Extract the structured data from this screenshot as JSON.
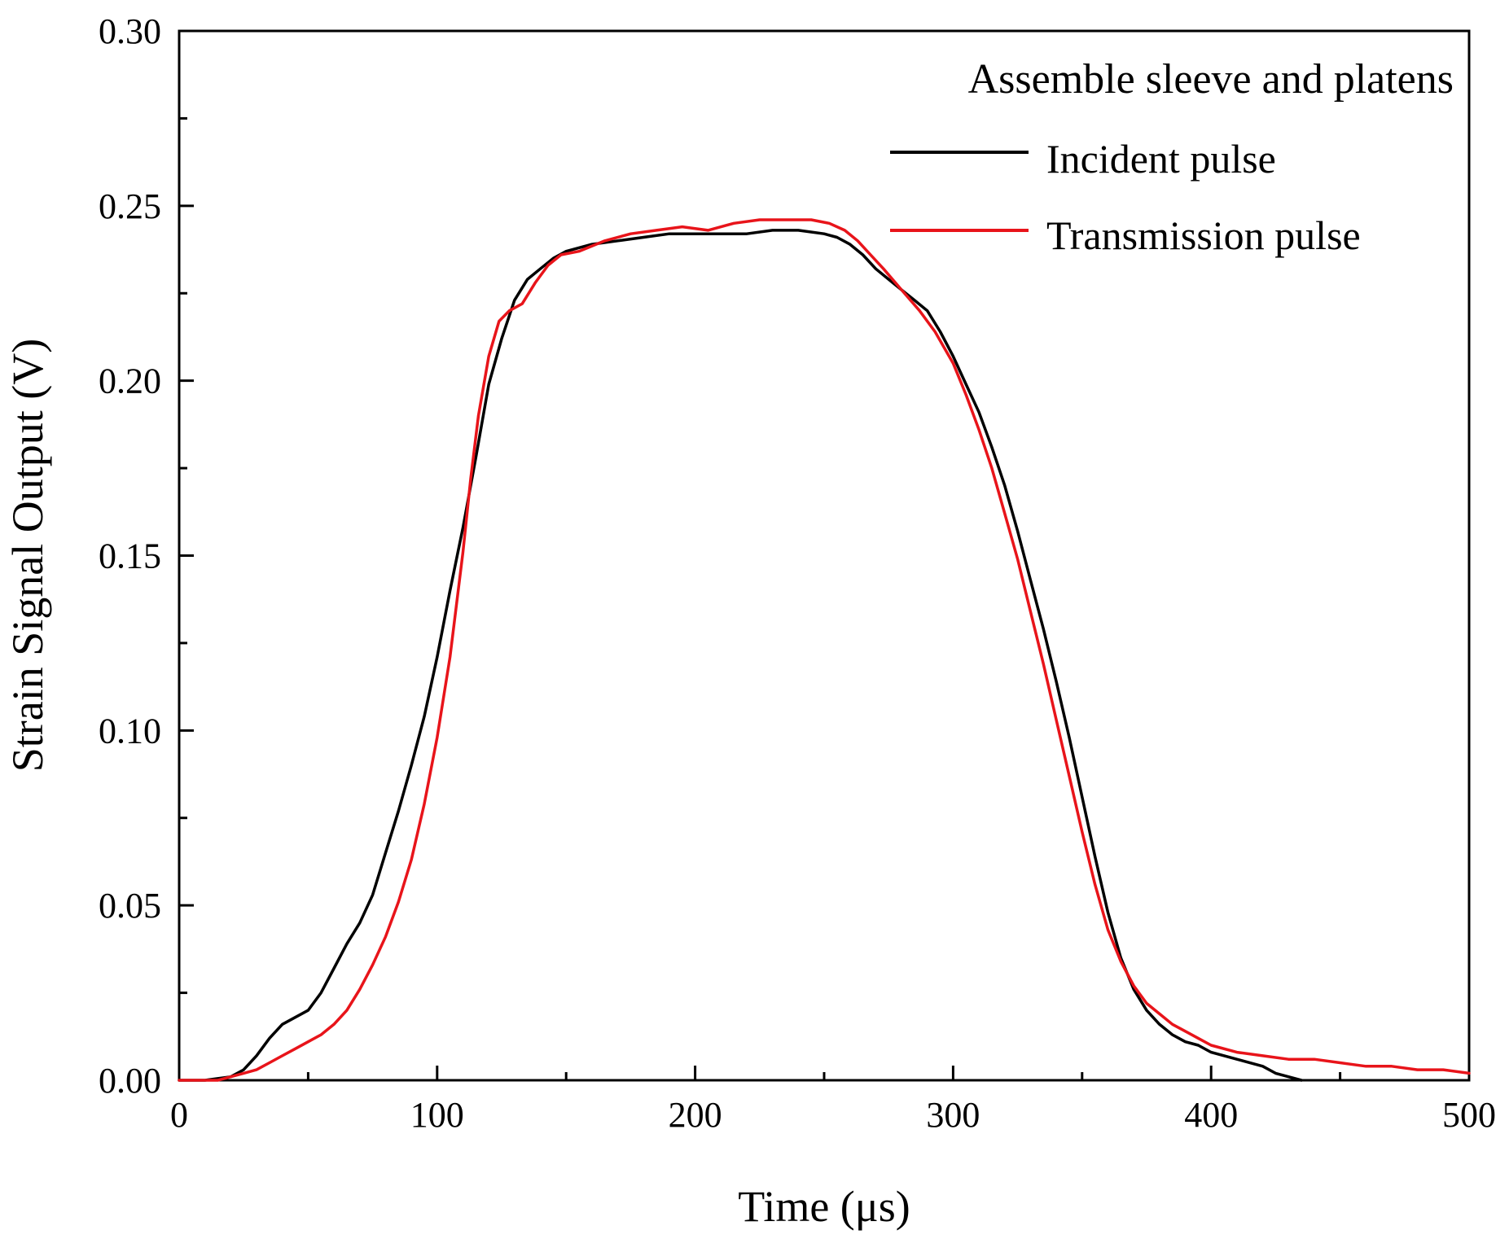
{
  "chart_data": {
    "type": "line",
    "title": "",
    "annotation": "Assemble sleeve and platens",
    "xlabel": "Time (μs)",
    "ylabel": "Strain Signal Output (V)",
    "xlim": [
      0,
      500
    ],
    "ylim": [
      0,
      0.3
    ],
    "x_ticks": [
      0,
      100,
      200,
      300,
      400,
      500
    ],
    "x_tick_labels": [
      "0",
      "100",
      "200",
      "300",
      "400",
      "500"
    ],
    "y_ticks": [
      0.0,
      0.05,
      0.1,
      0.15,
      0.2,
      0.25,
      0.3
    ],
    "y_tick_labels": [
      "0.00",
      "0.05",
      "0.10",
      "0.15",
      "0.20",
      "0.25",
      "0.30"
    ],
    "grid": false,
    "legend_position": "top-right",
    "series": [
      {
        "name": "Incident pulse",
        "color": "#000000",
        "points": [
          [
            0,
            0.0
          ],
          [
            10,
            0.0
          ],
          [
            20,
            0.001
          ],
          [
            25,
            0.003
          ],
          [
            30,
            0.007
          ],
          [
            35,
            0.012
          ],
          [
            40,
            0.016
          ],
          [
            50,
            0.02
          ],
          [
            55,
            0.025
          ],
          [
            60,
            0.032
          ],
          [
            65,
            0.039
          ],
          [
            70,
            0.045
          ],
          [
            75,
            0.053
          ],
          [
            80,
            0.065
          ],
          [
            85,
            0.077
          ],
          [
            90,
            0.09
          ],
          [
            95,
            0.104
          ],
          [
            100,
            0.121
          ],
          [
            105,
            0.14
          ],
          [
            110,
            0.158
          ],
          [
            115,
            0.178
          ],
          [
            120,
            0.199
          ],
          [
            125,
            0.212
          ],
          [
            130,
            0.223
          ],
          [
            135,
            0.229
          ],
          [
            140,
            0.232
          ],
          [
            145,
            0.235
          ],
          [
            150,
            0.237
          ],
          [
            160,
            0.239
          ],
          [
            170,
            0.24
          ],
          [
            180,
            0.241
          ],
          [
            190,
            0.242
          ],
          [
            200,
            0.242
          ],
          [
            210,
            0.242
          ],
          [
            220,
            0.242
          ],
          [
            230,
            0.243
          ],
          [
            240,
            0.243
          ],
          [
            250,
            0.242
          ],
          [
            255,
            0.241
          ],
          [
            260,
            0.239
          ],
          [
            265,
            0.236
          ],
          [
            270,
            0.232
          ],
          [
            275,
            0.229
          ],
          [
            280,
            0.226
          ],
          [
            285,
            0.223
          ],
          [
            290,
            0.22
          ],
          [
            295,
            0.214
          ],
          [
            300,
            0.207
          ],
          [
            305,
            0.199
          ],
          [
            310,
            0.191
          ],
          [
            315,
            0.181
          ],
          [
            320,
            0.17
          ],
          [
            325,
            0.157
          ],
          [
            330,
            0.143
          ],
          [
            335,
            0.129
          ],
          [
            340,
            0.114
          ],
          [
            345,
            0.098
          ],
          [
            350,
            0.081
          ],
          [
            355,
            0.064
          ],
          [
            360,
            0.048
          ],
          [
            365,
            0.035
          ],
          [
            370,
            0.026
          ],
          [
            375,
            0.02
          ],
          [
            380,
            0.016
          ],
          [
            385,
            0.013
          ],
          [
            390,
            0.011
          ],
          [
            395,
            0.01
          ],
          [
            400,
            0.008
          ],
          [
            410,
            0.006
          ],
          [
            420,
            0.004
          ],
          [
            425,
            0.002
          ],
          [
            430,
            0.001
          ],
          [
            435,
            0.0
          ]
        ]
      },
      {
        "name": "Transmission pulse",
        "color": "#e8141a",
        "points": [
          [
            0,
            0.0
          ],
          [
            15,
            0.0
          ],
          [
            20,
            0.001
          ],
          [
            25,
            0.002
          ],
          [
            30,
            0.003
          ],
          [
            35,
            0.005
          ],
          [
            40,
            0.007
          ],
          [
            45,
            0.009
          ],
          [
            50,
            0.011
          ],
          [
            55,
            0.013
          ],
          [
            60,
            0.016
          ],
          [
            65,
            0.02
          ],
          [
            70,
            0.026
          ],
          [
            75,
            0.033
          ],
          [
            80,
            0.041
          ],
          [
            85,
            0.051
          ],
          [
            90,
            0.063
          ],
          [
            95,
            0.079
          ],
          [
            100,
            0.098
          ],
          [
            105,
            0.121
          ],
          [
            110,
            0.151
          ],
          [
            113,
            0.172
          ],
          [
            116,
            0.19
          ],
          [
            120,
            0.207
          ],
          [
            124,
            0.217
          ],
          [
            128,
            0.22
          ],
          [
            133,
            0.222
          ],
          [
            138,
            0.228
          ],
          [
            143,
            0.233
          ],
          [
            148,
            0.236
          ],
          [
            155,
            0.237
          ],
          [
            165,
            0.24
          ],
          [
            175,
            0.242
          ],
          [
            185,
            0.243
          ],
          [
            195,
            0.244
          ],
          [
            205,
            0.243
          ],
          [
            215,
            0.245
          ],
          [
            225,
            0.246
          ],
          [
            235,
            0.246
          ],
          [
            245,
            0.246
          ],
          [
            252,
            0.245
          ],
          [
            258,
            0.243
          ],
          [
            263,
            0.24
          ],
          [
            268,
            0.236
          ],
          [
            273,
            0.232
          ],
          [
            280,
            0.226
          ],
          [
            287,
            0.22
          ],
          [
            293,
            0.214
          ],
          [
            300,
            0.205
          ],
          [
            305,
            0.196
          ],
          [
            310,
            0.186
          ],
          [
            315,
            0.175
          ],
          [
            320,
            0.162
          ],
          [
            325,
            0.149
          ],
          [
            330,
            0.134
          ],
          [
            335,
            0.119
          ],
          [
            340,
            0.103
          ],
          [
            345,
            0.087
          ],
          [
            350,
            0.071
          ],
          [
            355,
            0.056
          ],
          [
            360,
            0.043
          ],
          [
            365,
            0.034
          ],
          [
            370,
            0.027
          ],
          [
            375,
            0.022
          ],
          [
            380,
            0.019
          ],
          [
            385,
            0.016
          ],
          [
            390,
            0.014
          ],
          [
            395,
            0.012
          ],
          [
            400,
            0.01
          ],
          [
            410,
            0.008
          ],
          [
            420,
            0.007
          ],
          [
            430,
            0.006
          ],
          [
            440,
            0.006
          ],
          [
            450,
            0.005
          ],
          [
            460,
            0.004
          ],
          [
            470,
            0.004
          ],
          [
            480,
            0.003
          ],
          [
            490,
            0.003
          ],
          [
            500,
            0.002
          ]
        ]
      }
    ]
  }
}
